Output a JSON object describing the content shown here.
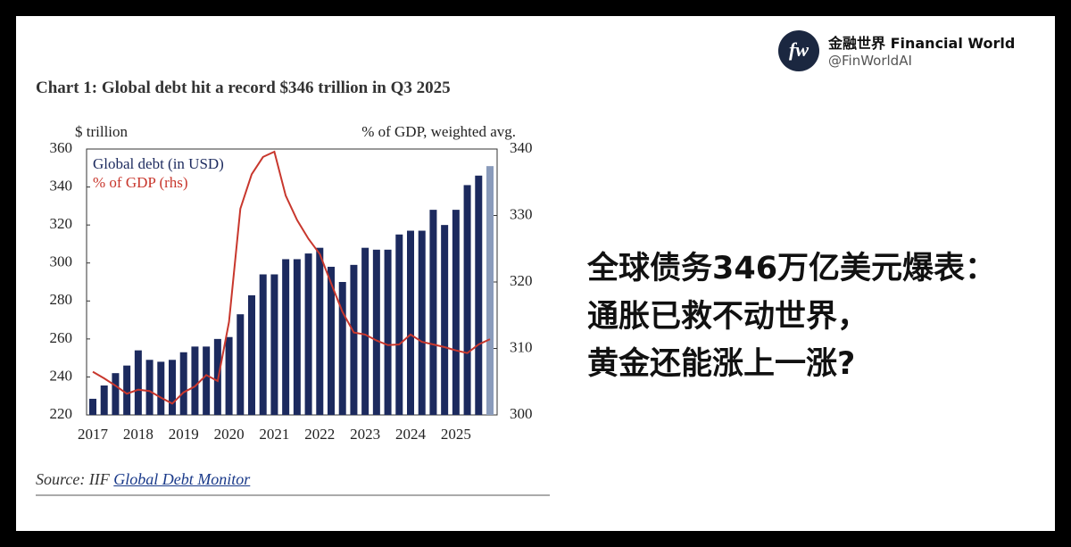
{
  "header": {
    "avatar": "fw",
    "name": "金融世界 Financial World",
    "handle": "@FinWorldAI"
  },
  "headline": [
    "全球债务346万亿美元爆表：",
    "通胀已救不动世界，",
    "黄金还能涨上一涨?"
  ],
  "chart_data": {
    "type": "bar",
    "title": "Chart 1: Global debt hit a record $346 trillion in Q3 2025",
    "y_label": "$ trillion",
    "y2_label": "% of GDP, weighted avg.",
    "categories": [
      "2017",
      null,
      null,
      null,
      "2018",
      null,
      null,
      null,
      "2019",
      null,
      null,
      null,
      "2020",
      null,
      null,
      null,
      "2021",
      null,
      null,
      null,
      "2022",
      null,
      null,
      null,
      "2023",
      null,
      null,
      null,
      "2024",
      null,
      null,
      null,
      "2025",
      null,
      null,
      null
    ],
    "series": [
      {
        "name": "Global debt (in USD)",
        "type": "bar",
        "color": "#1c2a5e",
        "last_color": "#8a9bbb",
        "values": [
          228.5,
          235.5,
          242,
          246,
          254,
          249,
          248,
          249,
          253,
          256,
          256,
          260,
          261,
          273,
          283,
          294,
          294,
          302,
          302,
          305,
          308,
          298,
          290,
          299,
          308,
          307,
          307,
          315,
          317,
          317,
          328,
          320,
          328,
          341,
          346,
          351
        ]
      },
      {
        "name": "% of GDP (rhs)",
        "type": "line",
        "axis": "y2",
        "color": "#c8372d",
        "values": [
          306.5,
          305.5,
          304.4,
          303.2,
          303.8,
          303.6,
          302.6,
          301.7,
          303.4,
          304.3,
          306,
          305.1,
          314,
          331,
          336.2,
          338.8,
          339.6,
          333,
          329.3,
          326.5,
          324.2,
          319.8,
          315.5,
          312.4,
          312.1,
          311.2,
          310.5,
          310.6,
          312.1,
          311,
          310.6,
          310.2,
          309.7,
          309.3,
          310.6,
          311.4
        ]
      }
    ],
    "ylim": [
      220,
      360
    ],
    "yticks": [
      220,
      240,
      260,
      280,
      300,
      320,
      340,
      360
    ],
    "y2lim": [
      300,
      340
    ],
    "y2ticks": [
      300,
      310,
      320,
      330,
      340
    ],
    "source": "Source: IIF",
    "source_link": "Global Debt Monitor"
  }
}
